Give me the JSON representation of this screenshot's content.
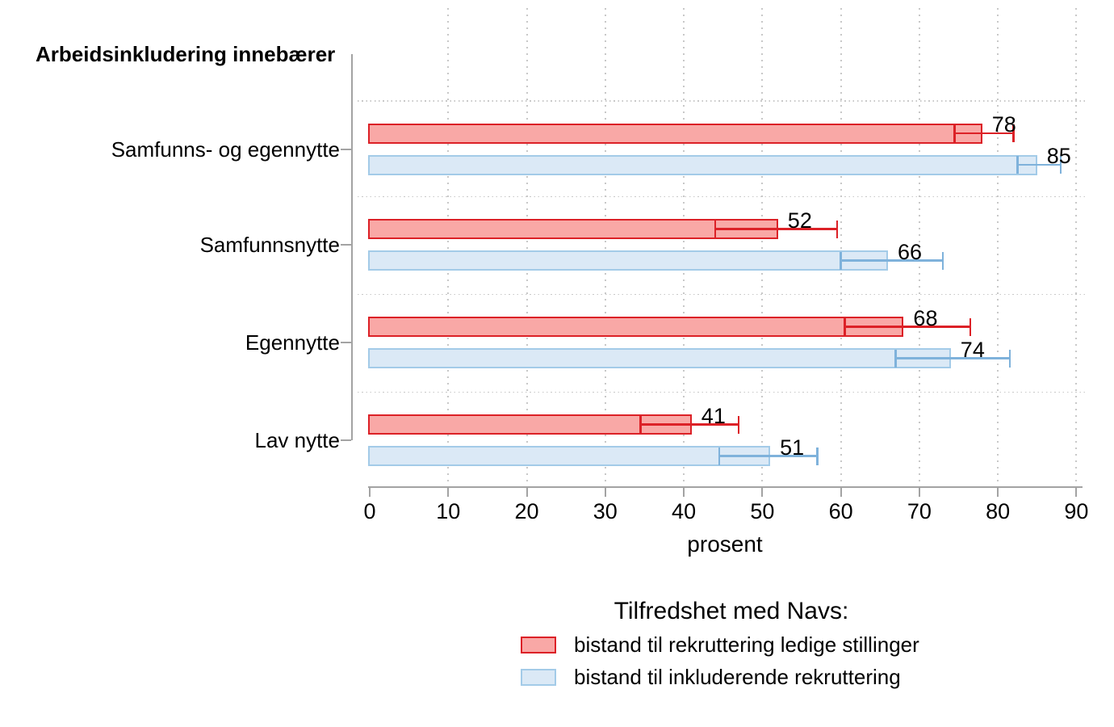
{
  "chart_data": {
    "type": "bar",
    "orientation": "horizontal",
    "title": "Arbeidsinkludering innebærer",
    "xlabel": "prosent",
    "xlim": [
      0,
      90
    ],
    "xticks": [
      0,
      10,
      20,
      30,
      40,
      50,
      60,
      70,
      80,
      90
    ],
    "grid": true,
    "categories": [
      "Samfunns- og egennytte",
      "Samfunnsnytte",
      "Egennytte",
      "Lav nytte"
    ],
    "series": [
      {
        "name": "bistand til rekruttering ledige stillinger",
        "values": [
          78,
          52,
          68,
          41
        ],
        "ci_low": [
          74.5,
          44,
          60.5,
          34.5
        ],
        "ci_high": [
          82,
          59.5,
          76.5,
          47
        ],
        "fill": "#f9a8a6",
        "stroke": "#dc2127",
        "error_color": "#dc2127"
      },
      {
        "name": "bistand til inkluderende rekruttering",
        "values": [
          85,
          66,
          74,
          51
        ],
        "ci_low": [
          82.5,
          60,
          67,
          44.5
        ],
        "ci_high": [
          88,
          73,
          81.5,
          57
        ],
        "fill": "#dbe9f6",
        "stroke": "#a3cbe8",
        "error_color": "#7fb2db"
      }
    ],
    "legend": {
      "title": "Tilfredshet med Navs:",
      "position": "bottom",
      "entries": [
        {
          "label": "bistand til rekruttering ledige stillinger"
        },
        {
          "label": "bistand til inkluderende rekruttering"
        }
      ]
    },
    "colors": {
      "grid": "#c8c8c8",
      "axis": "#a3a3a3",
      "text": "#000000"
    }
  }
}
